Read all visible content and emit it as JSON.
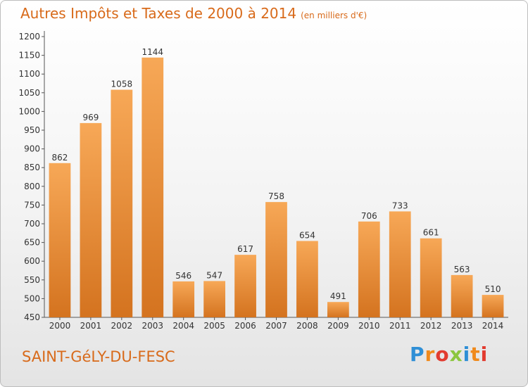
{
  "header": {
    "title": "Autres Impôts et Taxes de 2000 à 2014",
    "unit": "(en milliers d'€)"
  },
  "footer": {
    "commune": "SAINT-GéLY-DU-FESC",
    "logo": "Proxiti"
  },
  "colors": {
    "bar_light": "#f7a857",
    "bar_dark": "#d4731f",
    "accent_text": "#d86a1a",
    "axis": "#555555",
    "grid": "#dcdcdc"
  },
  "chart_data": {
    "type": "bar",
    "title": "Autres Impôts et Taxes de 2000 à 2014",
    "subtitle": "(en milliers d'€)",
    "xlabel": "",
    "ylabel": "",
    "categories": [
      "2000",
      "2001",
      "2002",
      "2003",
      "2004",
      "2005",
      "2006",
      "2007",
      "2008",
      "2009",
      "2010",
      "2011",
      "2012",
      "2013",
      "2014"
    ],
    "values": [
      862,
      969,
      1058,
      1144,
      546,
      547,
      617,
      758,
      654,
      491,
      706,
      733,
      661,
      563,
      510
    ],
    "ylim": [
      450,
      1200
    ],
    "yticks": [
      450,
      500,
      550,
      600,
      650,
      700,
      750,
      800,
      850,
      900,
      950,
      1000,
      1050,
      1100,
      1150,
      1200
    ],
    "grid": false,
    "legend": "none"
  }
}
